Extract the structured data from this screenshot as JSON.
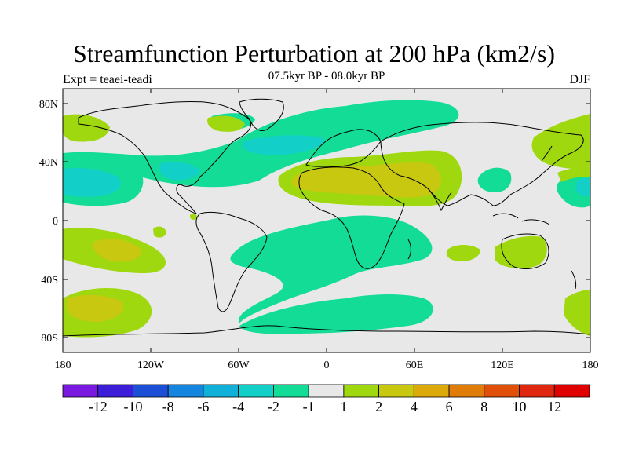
{
  "title": "Streamfunction Perturbation at 200 hPa (km2/s)",
  "subtitle": "07.5kyr BP - 08.0kyr BP",
  "left_label": "Expt = teaei-teadi",
  "right_label": "DJF",
  "axes": {
    "x_ticks": [
      "180",
      "120W",
      "60W",
      "0",
      "60E",
      "120E",
      "180"
    ],
    "y_ticks": [
      "80N",
      "40N",
      "0",
      "40S",
      "80S"
    ]
  },
  "colorbar": {
    "labels": [
      "-12",
      "-10",
      "-8",
      "-6",
      "-4",
      "-2",
      "-1",
      "1",
      "2",
      "4",
      "6",
      "8",
      "10",
      "12"
    ],
    "colors": [
      "#7a1ae0",
      "#3c1ed8",
      "#1a4fd6",
      "#1486e0",
      "#10b0d8",
      "#12d0c8",
      "#12dc96",
      "#e8e8e8",
      "#a0d810",
      "#c8c810",
      "#dcaa0a",
      "#e07c08",
      "#e05008",
      "#e02810",
      "#e00000"
    ]
  },
  "colors": {
    "background": "#e8e8e8",
    "neg_weak": "#12dc96",
    "neg_mid": "#12d0c8",
    "pos_weak": "#a0d810",
    "pos_mid": "#c8c810",
    "coast": "#000000"
  },
  "chart_data": {
    "type": "map-contour",
    "title": "Streamfunction Perturbation at 200 hPa (km2/s)",
    "projection": "cylindrical-equidistant",
    "lon_range": [
      -180,
      180
    ],
    "lat_range": [
      -90,
      90
    ],
    "season": "DJF",
    "units": "km2/s",
    "contour_levels": [
      -12,
      -10,
      -8,
      -6,
      -4,
      -2,
      -1,
      1,
      2,
      4,
      6,
      8,
      10,
      12
    ],
    "grid": false
  }
}
